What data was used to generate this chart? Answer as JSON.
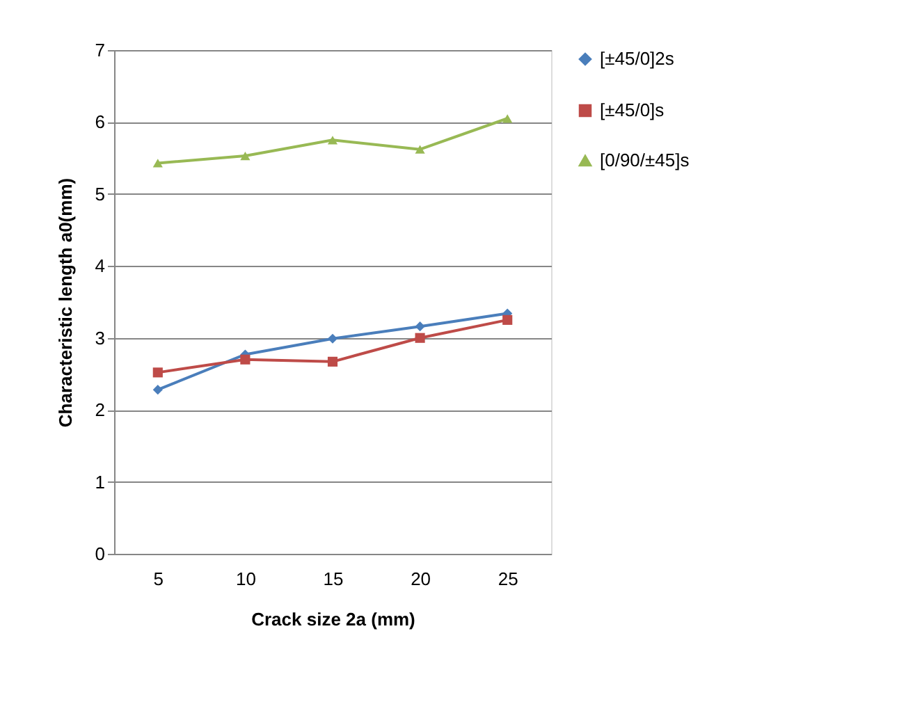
{
  "chart_data": {
    "type": "line",
    "xlabel": "Crack size 2a (mm)",
    "ylabel": "Characteristic  length a0(mm)",
    "categories": [
      "5",
      "10",
      "15",
      "20",
      "25"
    ],
    "series": [
      {
        "name": "[±45/0]2s",
        "color": "#4a7ebb",
        "marker": "diamond",
        "values": [
          2.28,
          2.77,
          2.99,
          3.16,
          3.34
        ]
      },
      {
        "name": "[±45/0]s",
        "color": "#be4b48",
        "marker": "square",
        "values": [
          2.52,
          2.7,
          2.67,
          3.0,
          3.25
        ]
      },
      {
        "name": "[0/90/±45]s",
        "color": "#98b954",
        "marker": "triangle",
        "values": [
          5.43,
          5.53,
          5.75,
          5.62,
          6.05
        ]
      }
    ],
    "ylim": [
      0,
      7
    ],
    "yticks": [
      0,
      1,
      2,
      3,
      4,
      5,
      6,
      7
    ],
    "grid": "y",
    "legend": "right",
    "line_style": "solid"
  }
}
